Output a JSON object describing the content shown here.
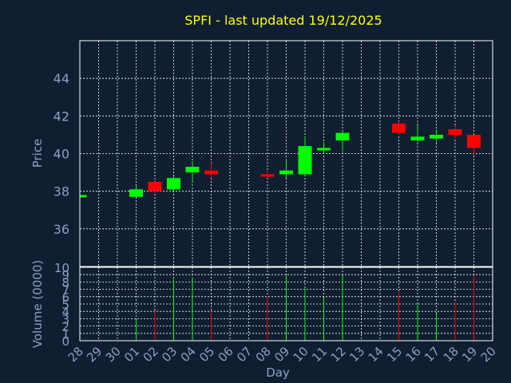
{
  "chart_data": {
    "type": "candlestick",
    "title": "SPFI - last updated 19/12/2025",
    "xlabel": "Day",
    "ylabel": "Price",
    "volume_ylabel": "Volume (0000)",
    "x_tick_labels": [
      "28",
      "29",
      "30",
      "01",
      "02",
      "03",
      "04",
      "05",
      "06",
      "07",
      "08",
      "09",
      "10",
      "11",
      "12",
      "13",
      "14",
      "15",
      "16",
      "17",
      "18",
      "19",
      "20"
    ],
    "price_ylim": [
      34,
      46
    ],
    "price_ticks": [
      "36",
      "38",
      "40",
      "42",
      "44"
    ],
    "volume_ylim": [
      0,
      10
    ],
    "volume_ticks": [
      "0",
      "1",
      "2",
      "3",
      "4",
      "5",
      "6",
      "7",
      "8",
      "9",
      "10"
    ],
    "grid": true,
    "colors": {
      "up": "#00ff00",
      "down": "#ff0000",
      "background": "#0f1e30",
      "grid": "#ffffff",
      "axis_text": "#8aa0c4",
      "title": "#ffff00"
    },
    "candles": [
      {
        "day": "28",
        "open": 37.7,
        "high": 37.8,
        "low": 37.7,
        "close": 37.8,
        "volume": 0
      },
      {
        "day": "01",
        "open": 37.7,
        "high": 38.3,
        "low": 37.7,
        "close": 38.1,
        "volume": 2.8
      },
      {
        "day": "02",
        "open": 38.5,
        "high": 38.5,
        "low": 37.9,
        "close": 38.0,
        "volume": 4.1
      },
      {
        "day": "03",
        "open": 38.1,
        "high": 38.8,
        "low": 38.0,
        "close": 38.7,
        "volume": 8.4
      },
      {
        "day": "04",
        "open": 39.0,
        "high": 39.6,
        "low": 38.5,
        "close": 39.3,
        "volume": 8.7
      },
      {
        "day": "05",
        "open": 39.1,
        "high": 39.5,
        "low": 38.7,
        "close": 38.9,
        "volume": 4.0
      },
      {
        "day": "08",
        "open": 38.9,
        "high": 39.1,
        "low": 38.7,
        "close": 38.8,
        "volume": 6.1
      },
      {
        "day": "09",
        "open": 38.9,
        "high": 39.7,
        "low": 38.7,
        "close": 39.1,
        "volume": 8.8
      },
      {
        "day": "10",
        "open": 38.9,
        "high": 40.9,
        "low": 38.9,
        "close": 40.4,
        "volume": 7.1
      },
      {
        "day": "11",
        "open": 40.2,
        "high": 40.6,
        "low": 40.0,
        "close": 40.3,
        "volume": 5.9
      },
      {
        "day": "12",
        "open": 40.7,
        "high": 41.2,
        "low": 40.1,
        "close": 41.1,
        "volume": 9.0
      },
      {
        "day": "15",
        "open": 41.6,
        "high": 41.7,
        "low": 41.0,
        "close": 41.1,
        "volume": 6.6
      },
      {
        "day": "16",
        "open": 40.7,
        "high": 41.5,
        "low": 40.6,
        "close": 40.9,
        "volume": 4.9
      },
      {
        "day": "17",
        "open": 40.8,
        "high": 41.3,
        "low": 40.6,
        "close": 41.0,
        "volume": 3.7
      },
      {
        "day": "18",
        "open": 41.3,
        "high": 41.5,
        "low": 40.8,
        "close": 41.0,
        "volume": 5.3
      },
      {
        "day": "19",
        "open": 41.0,
        "high": 41.0,
        "low": 39.9,
        "close": 40.3,
        "volume": 8.9
      }
    ]
  }
}
